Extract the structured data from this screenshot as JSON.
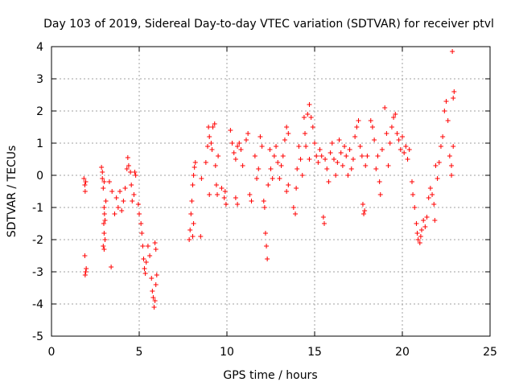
{
  "chart_data": {
    "type": "scatter",
    "title": "Day 103 of 2019, Sidereal Day-to-day VTEC variation (SDTVAR) for receiver ptvl",
    "xlabel": "GPS time / hours",
    "ylabel": "SDTVAR / TECUs",
    "xlim": [
      0,
      25
    ],
    "ylim": [
      -5,
      4
    ],
    "xticks": [
      "0",
      "5",
      "10",
      "15",
      "20",
      "25"
    ],
    "yticks": [
      "-5",
      "-4",
      "-3",
      "-2",
      "-1",
      "0",
      "1",
      "2",
      "3",
      "4"
    ],
    "grid": true,
    "marker": "+",
    "marker_color": "#ff0000",
    "series": [
      {
        "name": "SDTVAR",
        "points": [
          [
            1.85,
            -0.1
          ],
          [
            1.9,
            -0.3
          ],
          [
            1.92,
            -0.5
          ],
          [
            1.95,
            -0.2
          ],
          [
            1.9,
            -2.5
          ],
          [
            1.95,
            -3.0
          ],
          [
            1.92,
            -3.1
          ],
          [
            1.98,
            -2.9
          ],
          [
            2.85,
            0.25
          ],
          [
            2.9,
            0.1
          ],
          [
            2.9,
            -0.1
          ],
          [
            2.95,
            -0.4
          ],
          [
            3.0,
            -0.2
          ],
          [
            3.0,
            -1.0
          ],
          [
            3.02,
            -1.2
          ],
          [
            2.98,
            -1.5
          ],
          [
            3.0,
            -1.8
          ],
          [
            3.05,
            -2.0
          ],
          [
            2.95,
            -2.2
          ],
          [
            3.0,
            -2.3
          ],
          [
            3.05,
            -1.4
          ],
          [
            3.1,
            -0.8
          ],
          [
            3.3,
            -0.2
          ],
          [
            3.45,
            -0.5
          ],
          [
            3.6,
            -1.2
          ],
          [
            3.7,
            -0.7
          ],
          [
            3.8,
            -1.0
          ],
          [
            3.9,
            -0.5
          ],
          [
            4.0,
            -1.1
          ],
          [
            4.1,
            -0.8
          ],
          [
            4.2,
            -0.4
          ],
          [
            4.3,
            0.2
          ],
          [
            4.35,
            0.55
          ],
          [
            4.4,
            0.3
          ],
          [
            4.5,
            0.1
          ],
          [
            4.55,
            -0.3
          ],
          [
            4.6,
            -0.8
          ],
          [
            4.7,
            -0.6
          ],
          [
            4.75,
            0.1
          ],
          [
            4.8,
            0.0
          ],
          [
            3.4,
            -2.85
          ],
          [
            4.95,
            -0.9
          ],
          [
            5.0,
            -1.2
          ],
          [
            5.1,
            -1.5
          ],
          [
            5.15,
            -1.8
          ],
          [
            5.2,
            -2.2
          ],
          [
            5.25,
            -2.6
          ],
          [
            5.3,
            -2.9
          ],
          [
            5.35,
            -3.05
          ],
          [
            5.4,
            -2.7
          ],
          [
            5.5,
            -2.2
          ],
          [
            5.6,
            -2.5
          ],
          [
            5.7,
            -3.2
          ],
          [
            5.75,
            -3.6
          ],
          [
            5.8,
            -3.8
          ],
          [
            5.85,
            -4.1
          ],
          [
            5.9,
            -3.9
          ],
          [
            5.95,
            -3.4
          ],
          [
            6.0,
            -3.1
          ],
          [
            5.95,
            -2.3
          ],
          [
            5.9,
            -2.1
          ],
          [
            7.85,
            -2.0
          ],
          [
            7.9,
            -1.7
          ],
          [
            7.95,
            -1.2
          ],
          [
            8.0,
            -0.8
          ],
          [
            8.05,
            -0.3
          ],
          [
            8.1,
            0.0
          ],
          [
            8.15,
            0.25
          ],
          [
            8.2,
            0.4
          ],
          [
            8.1,
            -1.5
          ],
          [
            8.05,
            -1.9
          ],
          [
            8.5,
            -1.9
          ],
          [
            8.55,
            -0.1
          ],
          [
            8.8,
            0.4
          ],
          [
            8.9,
            0.9
          ],
          [
            8.95,
            1.5
          ],
          [
            9.0,
            1.2
          ],
          [
            9.1,
            1.0
          ],
          [
            9.15,
            0.8
          ],
          [
            9.2,
            1.5
          ],
          [
            9.3,
            1.6
          ],
          [
            9.35,
            0.3
          ],
          [
            9.4,
            -0.3
          ],
          [
            9.45,
            -0.6
          ],
          [
            9.5,
            0.6
          ],
          [
            9.7,
            -0.4
          ],
          [
            9.0,
            -0.6
          ],
          [
            9.85,
            -0.7
          ],
          [
            9.9,
            -0.5
          ],
          [
            9.95,
            -0.9
          ],
          [
            10.2,
            1.4
          ],
          [
            10.3,
            1.0
          ],
          [
            10.4,
            0.7
          ],
          [
            10.5,
            0.5
          ],
          [
            10.6,
            0.9
          ],
          [
            10.7,
            1.0
          ],
          [
            10.8,
            0.8
          ],
          [
            10.9,
            0.3
          ],
          [
            10.5,
            -0.7
          ],
          [
            10.6,
            -0.9
          ],
          [
            11.1,
            1.1
          ],
          [
            11.2,
            1.3
          ],
          [
            11.3,
            -0.6
          ],
          [
            11.4,
            -0.8
          ],
          [
            11.6,
            0.6
          ],
          [
            11.7,
            -0.1
          ],
          [
            11.8,
            0.2
          ],
          [
            11.9,
            1.2
          ],
          [
            12.0,
            0.9
          ],
          [
            12.1,
            -0.8
          ],
          [
            12.15,
            -1.0
          ],
          [
            12.2,
            -1.8
          ],
          [
            12.25,
            -2.2
          ],
          [
            12.3,
            -2.6
          ],
          [
            12.35,
            -0.3
          ],
          [
            12.45,
            0.8
          ],
          [
            12.5,
            0.2
          ],
          [
            12.6,
            -0.1
          ],
          [
            12.7,
            0.6
          ],
          [
            12.8,
            0.9
          ],
          [
            12.9,
            0.4
          ],
          [
            13.0,
            -0.1
          ],
          [
            13.1,
            0.3
          ],
          [
            13.2,
            0.6
          ],
          [
            13.3,
            1.1
          ],
          [
            13.4,
            1.5
          ],
          [
            13.5,
            1.3
          ],
          [
            13.4,
            -0.5
          ],
          [
            13.5,
            -0.3
          ],
          [
            13.8,
            -1.0
          ],
          [
            13.9,
            -1.2
          ],
          [
            13.95,
            -0.4
          ],
          [
            14.0,
            0.2
          ],
          [
            14.1,
            0.9
          ],
          [
            14.2,
            0.5
          ],
          [
            14.3,
            0.0
          ],
          [
            14.4,
            1.8
          ],
          [
            14.45,
            1.3
          ],
          [
            14.5,
            0.9
          ],
          [
            14.6,
            1.9
          ],
          [
            14.7,
            2.2
          ],
          [
            14.8,
            1.8
          ],
          [
            14.9,
            1.5
          ],
          [
            15.0,
            1.0
          ],
          [
            14.7,
            0.5
          ],
          [
            15.1,
            0.6
          ],
          [
            15.2,
            0.4
          ],
          [
            15.3,
            0.8
          ],
          [
            15.4,
            0.6
          ],
          [
            15.5,
            -1.3
          ],
          [
            15.55,
            -1.5
          ],
          [
            15.6,
            0.5
          ],
          [
            15.7,
            0.2
          ],
          [
            15.8,
            -0.2
          ],
          [
            15.9,
            0.7
          ],
          [
            16.0,
            1.0
          ],
          [
            16.1,
            0.5
          ],
          [
            16.2,
            0.0
          ],
          [
            16.3,
            0.4
          ],
          [
            16.4,
            1.1
          ],
          [
            16.5,
            0.7
          ],
          [
            16.6,
            0.3
          ],
          [
            16.7,
            0.9
          ],
          [
            16.8,
            0.6
          ],
          [
            16.9,
            0.0
          ],
          [
            17.0,
            0.8
          ],
          [
            17.1,
            0.2
          ],
          [
            17.2,
            0.5
          ],
          [
            17.3,
            1.2
          ],
          [
            17.4,
            1.5
          ],
          [
            17.5,
            1.7
          ],
          [
            17.6,
            0.9
          ],
          [
            17.7,
            0.6
          ],
          [
            17.75,
            -0.9
          ],
          [
            17.8,
            -1.2
          ],
          [
            17.85,
            -1.1
          ],
          [
            17.9,
            0.3
          ],
          [
            18.0,
            0.6
          ],
          [
            18.2,
            1.7
          ],
          [
            18.3,
            1.5
          ],
          [
            18.4,
            1.1
          ],
          [
            18.5,
            0.2
          ],
          [
            18.6,
            0.6
          ],
          [
            18.7,
            -0.2
          ],
          [
            18.75,
            -0.6
          ],
          [
            18.85,
            0.8
          ],
          [
            19.0,
            2.1
          ],
          [
            19.1,
            1.3
          ],
          [
            19.2,
            0.3
          ],
          [
            19.3,
            1.0
          ],
          [
            19.4,
            1.5
          ],
          [
            19.5,
            1.8
          ],
          [
            19.6,
            1.9
          ],
          [
            19.7,
            1.3
          ],
          [
            19.8,
            1.1
          ],
          [
            19.9,
            0.8
          ],
          [
            20.0,
            1.2
          ],
          [
            20.1,
            0.7
          ],
          [
            20.2,
            0.9
          ],
          [
            20.3,
            0.5
          ],
          [
            20.4,
            0.8
          ],
          [
            20.55,
            -0.2
          ],
          [
            20.6,
            -0.6
          ],
          [
            20.7,
            -1.0
          ],
          [
            20.8,
            -1.5
          ],
          [
            20.85,
            -1.8
          ],
          [
            20.9,
            -2.0
          ],
          [
            21.0,
            -2.1
          ],
          [
            21.05,
            -1.9
          ],
          [
            21.1,
            -1.7
          ],
          [
            21.2,
            -1.4
          ],
          [
            21.3,
            -1.6
          ],
          [
            21.4,
            -1.3
          ],
          [
            21.5,
            -0.7
          ],
          [
            21.6,
            -0.4
          ],
          [
            21.7,
            -0.6
          ],
          [
            21.8,
            -0.9
          ],
          [
            21.85,
            -1.4
          ],
          [
            21.9,
            0.3
          ],
          [
            22.0,
            -0.1
          ],
          [
            22.1,
            0.4
          ],
          [
            22.2,
            0.9
          ],
          [
            22.3,
            1.2
          ],
          [
            22.4,
            2.0
          ],
          [
            22.5,
            2.3
          ],
          [
            22.6,
            1.7
          ],
          [
            22.7,
            0.6
          ],
          [
            22.8,
            0.0
          ],
          [
            22.9,
            2.4
          ],
          [
            22.95,
            2.6
          ],
          [
            22.85,
            3.85
          ],
          [
            22.9,
            0.9
          ],
          [
            22.8,
            0.3
          ]
        ]
      }
    ]
  }
}
